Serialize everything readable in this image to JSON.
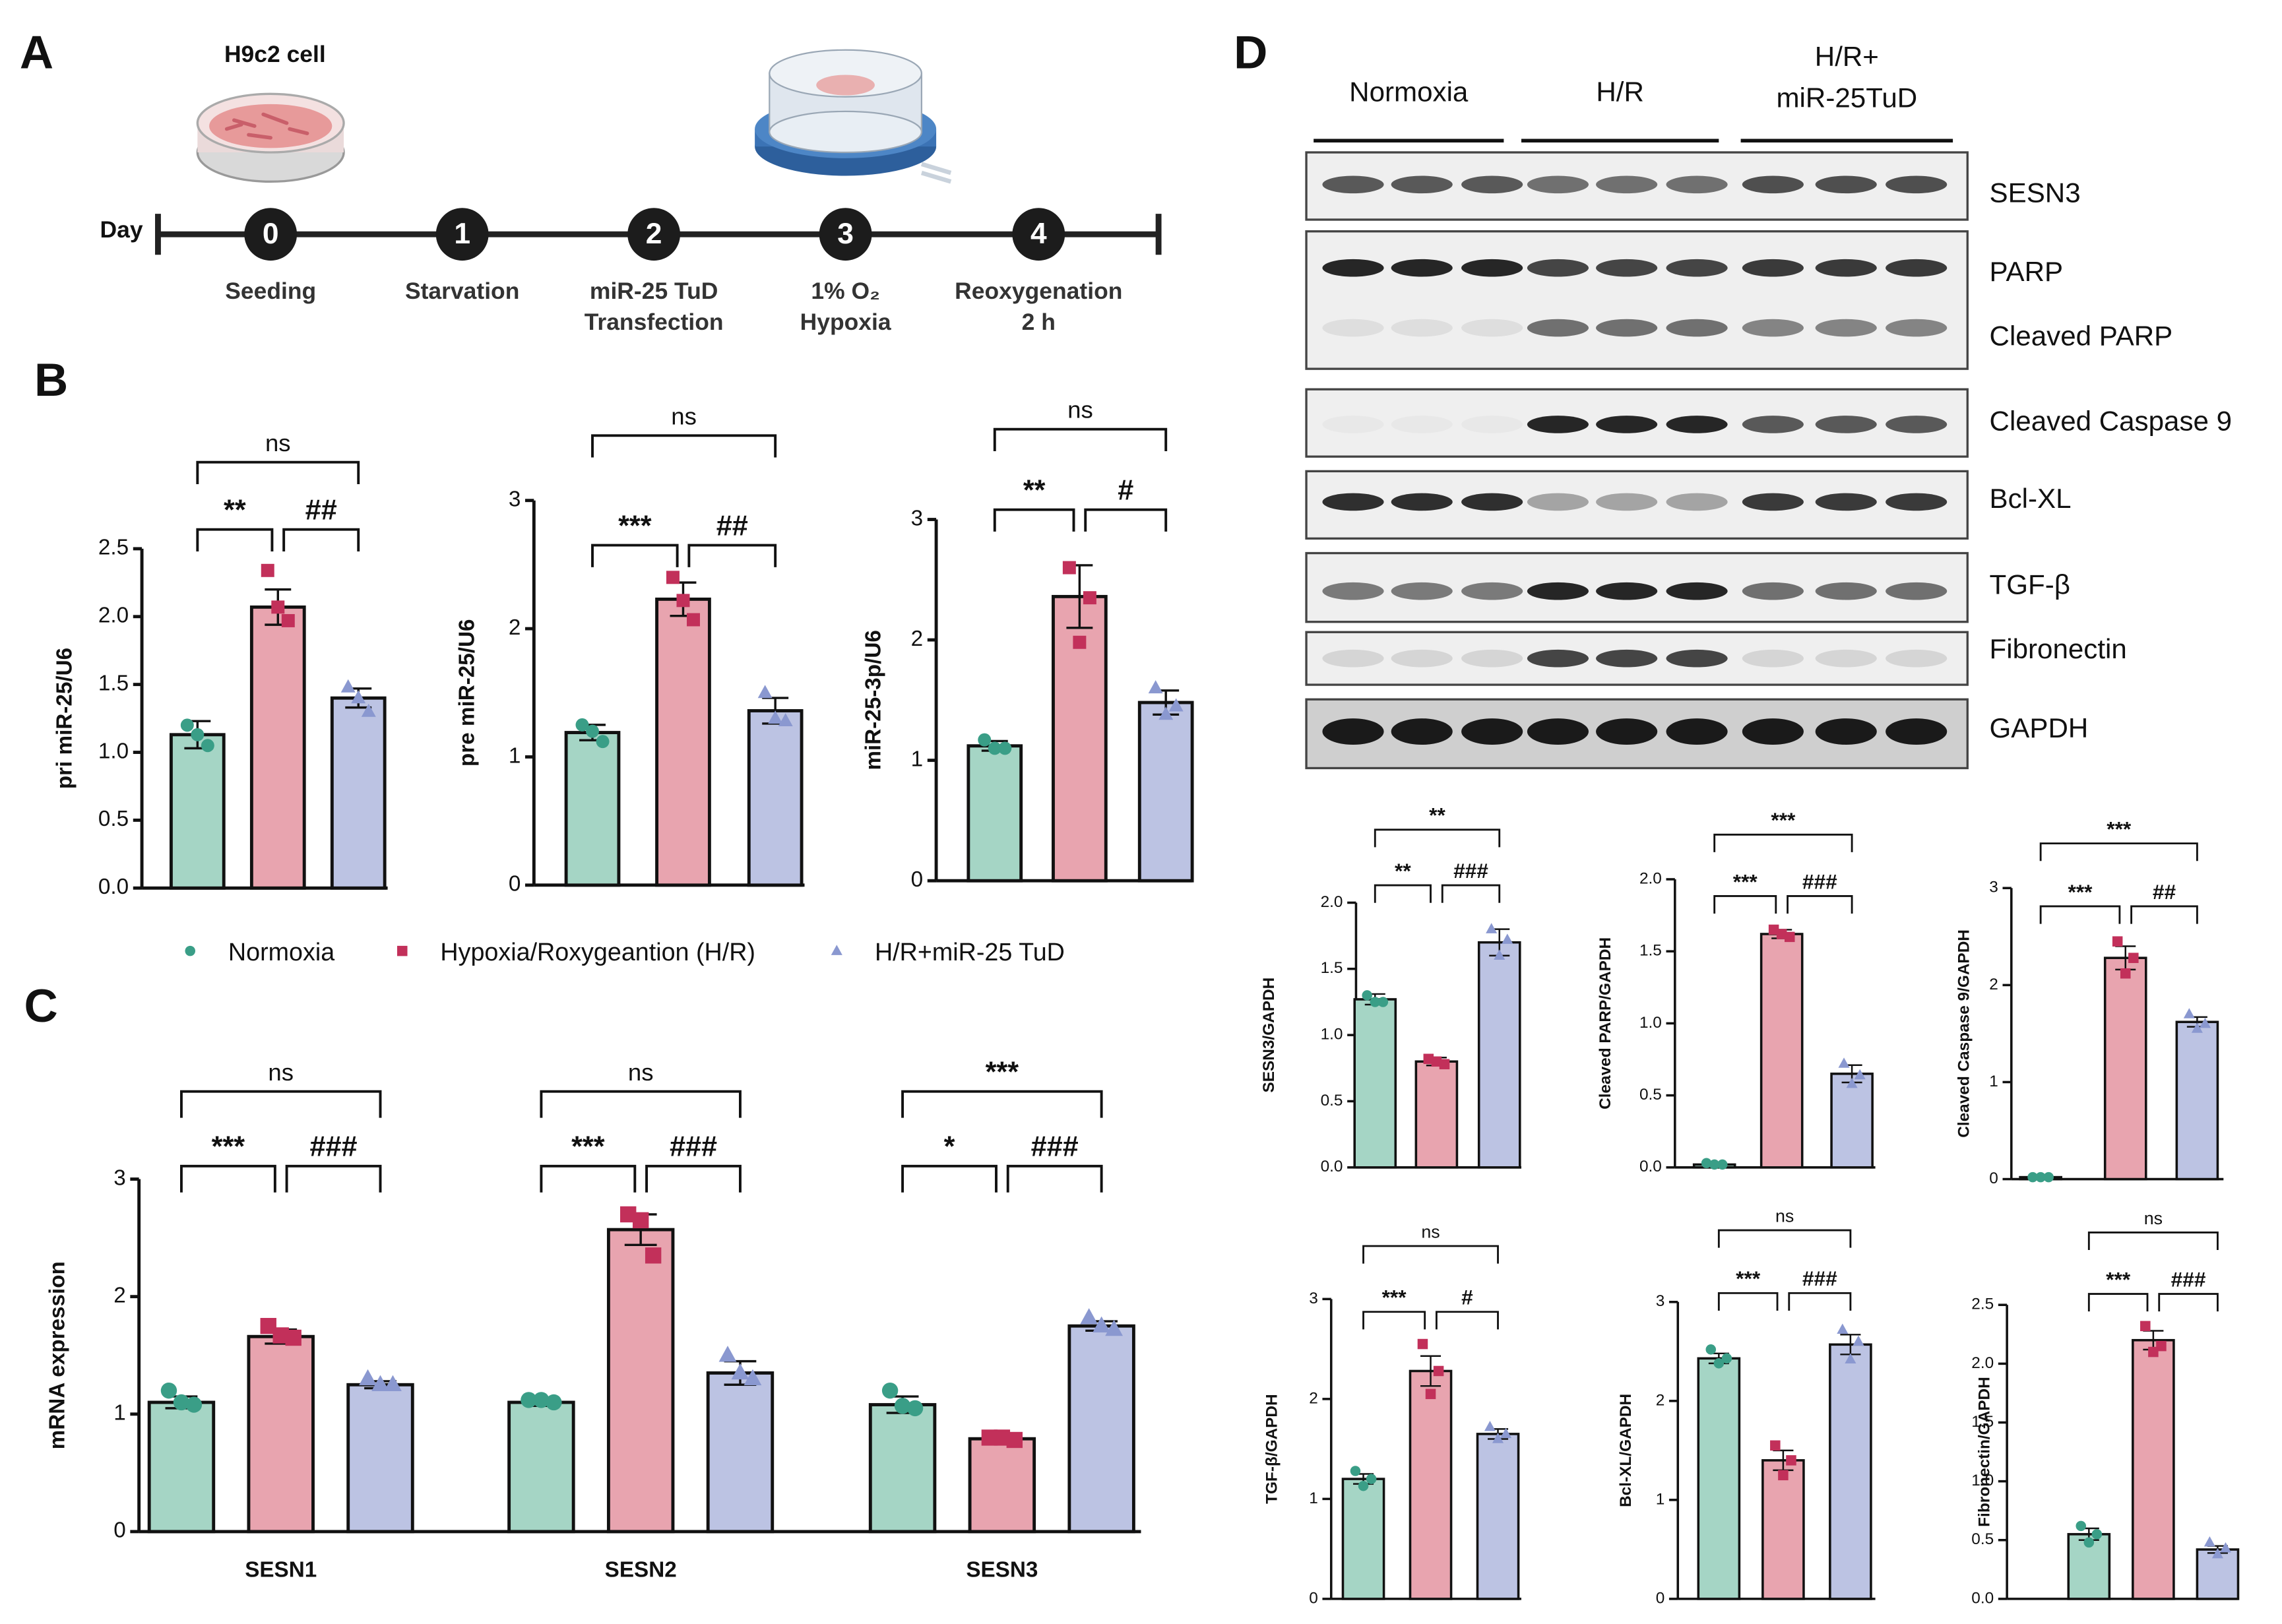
{
  "panel_labels": [
    "A",
    "B",
    "C",
    "D"
  ],
  "timeline": {
    "cell_label": "H9c2 cell",
    "axis_label": "Day",
    "steps": [
      {
        "day": 0,
        "label": [
          "Seeding"
        ]
      },
      {
        "day": 1,
        "label": [
          "Starvation"
        ]
      },
      {
        "day": 2,
        "label": [
          "miR-25 TuD",
          "Transfection"
        ]
      },
      {
        "day": 3,
        "label": [
          "1% O₂",
          "Hypoxia"
        ]
      },
      {
        "day": 4,
        "label": [
          "Reoxygenation",
          "2 h"
        ]
      }
    ]
  },
  "legend": [
    {
      "name": "Normoxia",
      "marker": "circle",
      "bar_color": "#a5d5c5",
      "point_color": "#3a9e87"
    },
    {
      "name": "Hypoxia/Roxygeantion (H/R)",
      "marker": "square",
      "bar_color": "#e8a4af",
      "point_color": "#c2305a"
    },
    {
      "name": "H/R+miR-25 TuD",
      "marker": "triangle",
      "bar_color": "#bcc3e3",
      "point_color": "#8a98d0"
    }
  ],
  "blot": {
    "groups": [
      [
        "Normoxia"
      ],
      [
        "H/R"
      ],
      [
        "H/R+",
        "miR-25TuD"
      ]
    ],
    "panels": [
      {
        "labels": [
          "SESN3"
        ]
      },
      {
        "labels": [
          "PARP",
          "Cleaved PARP"
        ]
      },
      {
        "labels": [
          "Cleaved Caspase 9"
        ]
      },
      {
        "labels": [
          "Bcl-XL"
        ]
      },
      {
        "labels": [
          "TGF-β"
        ]
      },
      {
        "labels": [
          "Fibronectin"
        ]
      },
      {
        "labels": [
          "GAPDH"
        ]
      }
    ]
  },
  "chart_data": [
    {
      "type": "bar",
      "ylabel": "pri miR-25/U6",
      "ylim": [
        0,
        2.5
      ],
      "yticks": [
        {
          "value": 0,
          "label": "0.0"
        },
        0.5,
        {
          "value": 1,
          "label": "1.0"
        },
        1.5,
        {
          "value": 2,
          "label": "2.0"
        },
        2.5
      ],
      "values": [
        1.13,
        2.07,
        1.4
      ],
      "errors": [
        0.1,
        0.13,
        0.07
      ],
      "points": [
        [
          1.2,
          1.05,
          1.13
        ],
        [
          2.34,
          1.97,
          2.07
        ],
        [
          1.48,
          1.3,
          1.4
        ]
      ],
      "brackets": [
        {
          "from": 0,
          "to": 1,
          "label": "**"
        },
        {
          "from": 1,
          "to": 2,
          "label": "##"
        },
        {
          "from": 0,
          "to": 2,
          "label": "ns"
        }
      ]
    },
    {
      "type": "bar",
      "ylabel": "pre miR-25/U6",
      "ylim": [
        0,
        3
      ],
      "yticks": [
        0,
        1,
        2,
        3
      ],
      "values": [
        1.19,
        2.23,
        1.36
      ],
      "errors": [
        0.06,
        0.13,
        0.1
      ],
      "points": [
        [
          1.25,
          1.12,
          1.2
        ],
        [
          2.4,
          2.07,
          2.22
        ],
        [
          1.5,
          1.28,
          1.3
        ]
      ],
      "brackets": [
        {
          "from": 0,
          "to": 1,
          "label": "***"
        },
        {
          "from": 1,
          "to": 2,
          "label": "##"
        },
        {
          "from": 0,
          "to": 2,
          "label": "ns"
        }
      ]
    },
    {
      "type": "bar",
      "ylabel": "miR-25-3p/U6",
      "ylim": [
        0,
        3
      ],
      "yticks": [
        0,
        1,
        2,
        3
      ],
      "values": [
        1.12,
        2.36,
        1.48
      ],
      "errors": [
        0.04,
        0.26,
        0.1
      ],
      "points": [
        [
          1.17,
          1.1,
          1.1
        ],
        [
          2.6,
          2.35,
          1.98
        ],
        [
          1.6,
          1.45,
          1.38
        ]
      ],
      "brackets": [
        {
          "from": 0,
          "to": 1,
          "label": "**"
        },
        {
          "from": 1,
          "to": 2,
          "label": "#"
        },
        {
          "from": 0,
          "to": 2,
          "label": "ns"
        }
      ]
    },
    {
      "type": "grouped_bar",
      "ylabel": "mRNA expression",
      "ylim": [
        0,
        3
      ],
      "yticks": [
        0,
        1,
        2,
        3
      ],
      "categories": [
        "SESN1",
        "SESN2",
        "SESN3"
      ],
      "series": [
        {
          "values": [
            1.1,
            1.1,
            1.08
          ],
          "errors": [
            0.05,
            0.03,
            0.07
          ],
          "points": [
            [
              1.2,
              1.08,
              1.1
            ],
            [
              1.12,
              1.1,
              1.12
            ],
            [
              1.2,
              1.05,
              1.07
            ]
          ]
        },
        {
          "values": [
            1.66,
            2.57,
            0.79
          ],
          "errors": [
            0.06,
            0.13,
            0.02
          ],
          "points": [
            [
              1.75,
              1.65,
              1.67
            ],
            [
              2.7,
              2.35,
              2.65
            ],
            [
              0.8,
              0.78,
              0.8
            ]
          ]
        },
        {
          "values": [
            1.25,
            1.35,
            1.75
          ],
          "errors": [
            0.03,
            0.1,
            0.04
          ],
          "points": [
            [
              1.3,
              1.25,
              1.25
            ],
            [
              1.5,
              1.3,
              1.35
            ],
            [
              1.82,
              1.72,
              1.75
            ]
          ]
        }
      ],
      "brackets": [
        {
          "category": 0,
          "from": 0,
          "to": 1,
          "label": "***"
        },
        {
          "category": 0,
          "from": 1,
          "to": 2,
          "label": "###"
        },
        {
          "category": 0,
          "from": 0,
          "to": 2,
          "label": "ns"
        },
        {
          "category": 1,
          "from": 0,
          "to": 1,
          "label": "***"
        },
        {
          "category": 1,
          "from": 1,
          "to": 2,
          "label": "###"
        },
        {
          "category": 1,
          "from": 0,
          "to": 2,
          "label": "ns"
        },
        {
          "category": 2,
          "from": 0,
          "to": 1,
          "label": "*"
        },
        {
          "category": 2,
          "from": 1,
          "to": 2,
          "label": "###"
        },
        {
          "category": 2,
          "from": 0,
          "to": 2,
          "label": "***"
        }
      ]
    },
    {
      "type": "bar",
      "ylabel": "SESN3/GAPDH",
      "ylim": [
        0,
        2
      ],
      "yticks": [
        {
          "value": 0,
          "label": "0.0"
        },
        0.5,
        {
          "value": 1,
          "label": "1.0"
        },
        1.5,
        {
          "value": 2,
          "label": "2.0"
        }
      ],
      "values": [
        1.27,
        0.8,
        1.7
      ],
      "errors": [
        0.04,
        0.03,
        0.1
      ],
      "points": [
        [
          1.3,
          1.25,
          1.25
        ],
        [
          0.82,
          0.78,
          0.8
        ],
        [
          1.8,
          1.72,
          1.6
        ]
      ],
      "brackets": [
        {
          "from": 0,
          "to": 1,
          "label": "**"
        },
        {
          "from": 1,
          "to": 2,
          "label": "###"
        },
        {
          "from": 0,
          "to": 2,
          "label": "**"
        }
      ]
    },
    {
      "type": "bar",
      "ylabel": "Cleaved PARP/GAPDH",
      "ylim": [
        0,
        2
      ],
      "yticks": [
        {
          "value": 0,
          "label": "0.0"
        },
        0.5,
        {
          "value": 1,
          "label": "1.0"
        },
        1.5,
        {
          "value": 2,
          "label": "2.0"
        }
      ],
      "values": [
        0.02,
        1.62,
        0.65
      ],
      "errors": [
        0.005,
        0.03,
        0.06
      ],
      "points": [
        [
          0.03,
          0.02,
          0.02
        ],
        [
          1.65,
          1.6,
          1.62
        ],
        [
          0.72,
          0.64,
          0.58
        ]
      ],
      "brackets": [
        {
          "from": 0,
          "to": 1,
          "label": "***"
        },
        {
          "from": 1,
          "to": 2,
          "label": "###"
        },
        {
          "from": 0,
          "to": 2,
          "label": "***"
        }
      ]
    },
    {
      "type": "bar",
      "ylabel": "Cleaved Caspase 9/GAPDH",
      "ylim": [
        0,
        3
      ],
      "yticks": [
        0,
        1,
        2,
        3
      ],
      "values": [
        0.02,
        2.28,
        1.62
      ],
      "errors": [
        0.005,
        0.12,
        0.05
      ],
      "points": [
        [
          0.02,
          0.02,
          0.02
        ],
        [
          2.45,
          2.28,
          2.12
        ],
        [
          1.7,
          1.6,
          1.55
        ]
      ],
      "brackets": [
        {
          "from": 0,
          "to": 1,
          "label": "***"
        },
        {
          "from": 1,
          "to": 2,
          "label": "##"
        },
        {
          "from": 0,
          "to": 2,
          "label": "***"
        }
      ]
    },
    {
      "type": "bar",
      "ylabel": "TGF-β/GAPDH",
      "ylim": [
        0,
        3
      ],
      "yticks": [
        0,
        1,
        2,
        3
      ],
      "values": [
        1.2,
        2.28,
        1.65
      ],
      "errors": [
        0.05,
        0.15,
        0.05
      ],
      "points": [
        [
          1.28,
          1.2,
          1.13
        ],
        [
          2.55,
          2.28,
          2.05
        ],
        [
          1.72,
          1.65,
          1.6
        ]
      ],
      "brackets": [
        {
          "from": 0,
          "to": 1,
          "label": "***"
        },
        {
          "from": 1,
          "to": 2,
          "label": "#"
        },
        {
          "from": 0,
          "to": 2,
          "label": "ns"
        }
      ]
    },
    {
      "type": "bar",
      "ylabel": "Bcl-XL/GAPDH",
      "ylim": [
        0,
        3
      ],
      "yticks": [
        0,
        1,
        2,
        3
      ],
      "values": [
        2.43,
        1.4,
        2.57
      ],
      "errors": [
        0.05,
        0.1,
        0.1
      ],
      "points": [
        [
          2.52,
          2.43,
          2.38
        ],
        [
          1.55,
          1.4,
          1.25
        ],
        [
          2.72,
          2.6,
          2.42
        ]
      ],
      "brackets": [
        {
          "from": 0,
          "to": 1,
          "label": "***"
        },
        {
          "from": 1,
          "to": 2,
          "label": "###"
        },
        {
          "from": 0,
          "to": 2,
          "label": "ns"
        }
      ]
    },
    {
      "type": "bar",
      "ylabel": "Fibronectin/GAPDH",
      "ylim": [
        0,
        2.5
      ],
      "yticks": [
        {
          "value": 0,
          "label": "0.0"
        },
        0.5,
        {
          "value": 1,
          "label": "1.0"
        },
        1.5,
        {
          "value": 2,
          "label": "2.0"
        },
        2.5
      ],
      "values": [
        0.55,
        2.2,
        0.42
      ],
      "errors": [
        0.05,
        0.08,
        0.03
      ],
      "points": [
        [
          0.62,
          0.55,
          0.48
        ],
        [
          2.32,
          2.15,
          2.1
        ],
        [
          0.48,
          0.43,
          0.38
        ]
      ],
      "brackets": [
        {
          "from": 0,
          "to": 1,
          "label": "***"
        },
        {
          "from": 1,
          "to": 2,
          "label": "###"
        },
        {
          "from": 0,
          "to": 2,
          "label": "ns"
        }
      ]
    }
  ]
}
